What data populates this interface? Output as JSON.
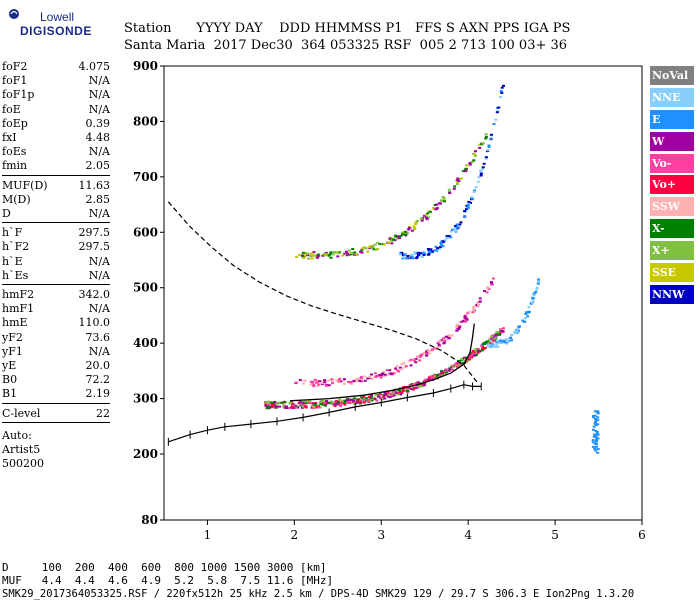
{
  "logo": {
    "line1": "Lowell",
    "line2": "DIGISONDE"
  },
  "header": {
    "labels": "Station      YYYY DAY    DDD HHMMSS P1   FFS S AXN PPS IGA PS",
    "values": "Santa Maria  2017 Dec30  364 053325 RSF  005 2 713 100 03+ 36"
  },
  "params": {
    "group1": [
      {
        "k": "foF2",
        "v": "4.075"
      },
      {
        "k": "foF1",
        "v": "N/A"
      },
      {
        "k": "foF1p",
        "v": "N/A"
      },
      {
        "k": "foE",
        "v": "N/A"
      },
      {
        "k": "foEp",
        "v": "0.39"
      },
      {
        "k": "fxI",
        "v": "4.48"
      },
      {
        "k": "foEs",
        "v": "N/A"
      },
      {
        "k": "fmin",
        "v": "2.05"
      }
    ],
    "group2": [
      {
        "k": "MUF(D)",
        "v": "11.63"
      },
      {
        "k": "M(D)",
        "v": "2.85"
      },
      {
        "k": "D",
        "v": "N/A"
      }
    ],
    "group3": [
      {
        "k": "h`F",
        "v": "297.5"
      },
      {
        "k": "h`F2",
        "v": "297.5"
      },
      {
        "k": "h`E",
        "v": "N/A"
      },
      {
        "k": "h`Es",
        "v": "N/A"
      }
    ],
    "group4": [
      {
        "k": "hmF2",
        "v": "342.0"
      },
      {
        "k": "hmF1",
        "v": "N/A"
      },
      {
        "k": "hmE",
        "v": "110.0"
      },
      {
        "k": "yF2",
        "v": "73.6"
      },
      {
        "k": "yF1",
        "v": "N/A"
      },
      {
        "k": "yE",
        "v": "20.0"
      },
      {
        "k": "B0",
        "v": "72.2"
      },
      {
        "k": "B1",
        "v": "2.19"
      }
    ],
    "group5": [
      {
        "k": "C-level",
        "v": "22"
      }
    ],
    "auto_lines": [
      "Auto:",
      "Artist5",
      "500200"
    ]
  },
  "legend": [
    {
      "label": "NoVal",
      "color": "#808080"
    },
    {
      "label": "NNE",
      "color": "#87cefa"
    },
    {
      "label": "E",
      "color": "#1e90ff"
    },
    {
      "label": "W",
      "color": "#a000a0"
    },
    {
      "label": "Vo-",
      "color": "#ff40a0"
    },
    {
      "label": "Vo+",
      "color": "#ff0040"
    },
    {
      "label": "SSW",
      "color": "#ffb0b0"
    },
    {
      "label": "X-",
      "color": "#008000"
    },
    {
      "label": "X+",
      "color": "#80c040"
    },
    {
      "label": "SSE",
      "color": "#c8c800"
    },
    {
      "label": "NNW",
      "color": "#0000c0"
    }
  ],
  "footer": {
    "line1": "D     100  200  400  600  800 1000 1500 3000 [km]",
    "line2": "MUF   4.4  4.4  4.6  4.9  5.2  5.8  7.5 11.6 [MHz]",
    "line3": "SMK29_2017364053325.RSF / 220fx512h 25 kHz 2.5 km / DPS-4D SMK29 129 / 29.7 S 306.3 E Ion2Png 1.3.20"
  },
  "chart_data": {
    "type": "scatter",
    "xlim": [
      0.5,
      6
    ],
    "ylim": [
      80,
      900
    ],
    "x_ticks": [
      1,
      2,
      3,
      4,
      5,
      6
    ],
    "y_ticks": [
      80,
      200,
      300,
      400,
      500,
      600,
      700,
      800,
      900
    ],
    "x_tick_labels": [
      "1",
      "2",
      "3",
      "4",
      "5",
      "6"
    ],
    "y_tick_labels": [
      "80",
      "200",
      "300",
      "400",
      "500",
      "600",
      "700",
      "800",
      "900"
    ],
    "frequency_extent_mhz": [
      1.6,
      4.5
    ],
    "series": [
      {
        "kind": "virtual-height-trace",
        "x": [
          0.55,
          0.8,
          1.0,
          1.2,
          1.5,
          1.8,
          2.1,
          2.4,
          2.7,
          3.0,
          3.3,
          3.6,
          3.8,
          3.95,
          4.05,
          4.15
        ],
        "y": [
          222,
          235,
          243,
          249,
          254,
          259,
          266,
          275,
          285,
          293,
          302,
          310,
          318,
          325,
          322,
          322
        ]
      },
      {
        "kind": "dashed-profile",
        "x": [
          0.55,
          0.8,
          1.05,
          1.3,
          1.6,
          1.9,
          2.2,
          2.5,
          2.8,
          3.1,
          3.4,
          3.7,
          3.95,
          4.1
        ],
        "y": [
          655,
          610,
          573,
          540,
          510,
          486,
          467,
          452,
          438,
          424,
          408,
          386,
          360,
          330
        ]
      },
      {
        "kind": "true-height-profile",
        "x": [
          1.95,
          2.4,
          2.8,
          3.1,
          3.4,
          3.6,
          3.8,
          3.95,
          4.02,
          4.05,
          4.07
        ],
        "y": [
          296,
          300,
          306,
          314,
          324,
          334,
          346,
          362,
          382,
          410,
          435
        ]
      }
    ]
  }
}
